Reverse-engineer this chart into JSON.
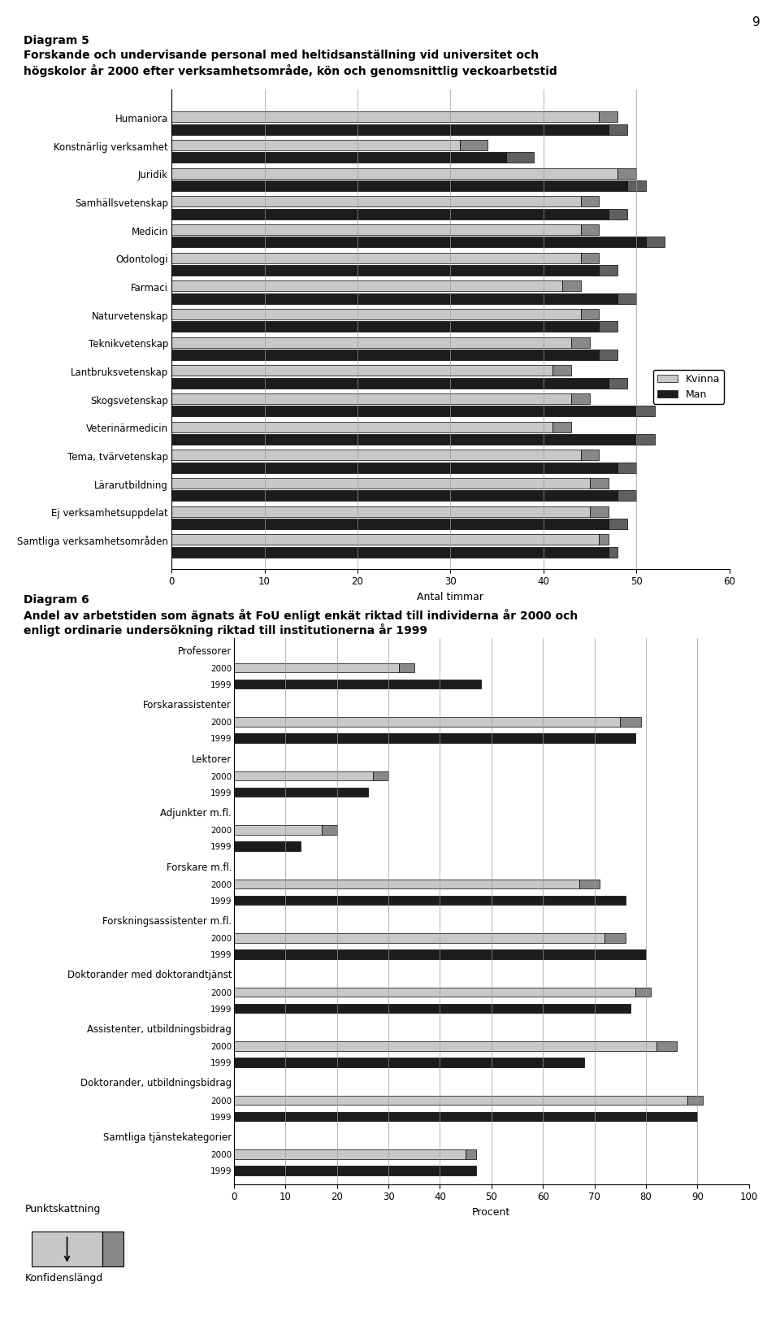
{
  "page_number": "9",
  "diagram5": {
    "title_line1": "Diagram 5",
    "title_line2": "Forskande och undervisande personal med heltidsanställning vid universitet och",
    "title_line3": "högskolor år 2000 efter verksamhetsområde, kön och genomsnittlig veckoarbetstid",
    "xlabel": "Antal timmar",
    "xlim": [
      0,
      60
    ],
    "xticks": [
      0,
      10,
      20,
      30,
      40,
      50,
      60
    ],
    "categories": [
      "Humaniora",
      "Konstnärlig verksamhet",
      "Juridik",
      "Samhällsvetenskap",
      "Medicin",
      "Odontologi",
      "Farmaci",
      "Naturvetenskap",
      "Teknikvetenskap",
      "Lantbruksvetenskap",
      "Skogsvetenskap",
      "Veterinärmedicin",
      "Tema, tvärvetenskap",
      "Lärarutbildning",
      "Ej verksamhetsuppdelat",
      "Samtliga verksamhetsområden"
    ],
    "kvinna_main": [
      46,
      31,
      48,
      44,
      44,
      44,
      42,
      44,
      43,
      41,
      43,
      41,
      44,
      45,
      45,
      46
    ],
    "kvinna_ci": [
      2,
      3,
      2,
      2,
      2,
      2,
      2,
      2,
      2,
      2,
      2,
      2,
      2,
      2,
      2,
      1
    ],
    "man_main": [
      47,
      36,
      49,
      47,
      51,
      46,
      48,
      46,
      46,
      47,
      50,
      50,
      48,
      48,
      47,
      47
    ],
    "man_ci": [
      2,
      3,
      2,
      2,
      2,
      2,
      2,
      2,
      2,
      2,
      2,
      2,
      2,
      2,
      2,
      1
    ],
    "color_kvinna_main": "#c8c8c8",
    "color_kvinna_ci": "#888888",
    "color_man_main": "#1c1c1c",
    "color_man_ci": "#606060",
    "legend_kvinna": "Kvinna",
    "legend_man": "Man"
  },
  "diagram6": {
    "title_line1": "Diagram 6",
    "title_line2": "Andel av arbetstiden som ägnats åt FoU enligt enkät riktad till individerna år 2000 och",
    "title_line3": "enligt ordinarie undersökning riktad till institutionerna år 1999",
    "xlabel": "Procent",
    "xlim": [
      0,
      100
    ],
    "xticks": [
      0,
      10,
      20,
      30,
      40,
      50,
      60,
      70,
      80,
      90,
      100
    ],
    "groups": [
      "Professorer",
      "Forskarassistenter",
      "Lektorer",
      "Adjunkter m.fl.",
      "Forskare m.fl.",
      "Forskningsassistenter m.fl.",
      "Doktorander med doktorandtjänst",
      "Assistenter, utbildningsbidrag",
      "Doktorander, utbildningsbidrag",
      "Samtliga tjänstekategorier"
    ],
    "val_2000_main": [
      32,
      75,
      27,
      17,
      67,
      72,
      78,
      82,
      88,
      45
    ],
    "val_2000_ci": [
      3,
      4,
      3,
      3,
      4,
      4,
      3,
      4,
      3,
      2
    ],
    "val_1999": [
      48,
      78,
      26,
      13,
      76,
      80,
      77,
      68,
      90,
      47
    ],
    "color_2000_main": "#c8c8c8",
    "color_2000_ci": "#888888",
    "color_1999": "#1c1c1c"
  },
  "legend_box": {
    "label_top": "Punktskattning",
    "label_bot": "Konfidenslängd",
    "main_color": "#c8c8c8",
    "ci_color": "#888888"
  }
}
